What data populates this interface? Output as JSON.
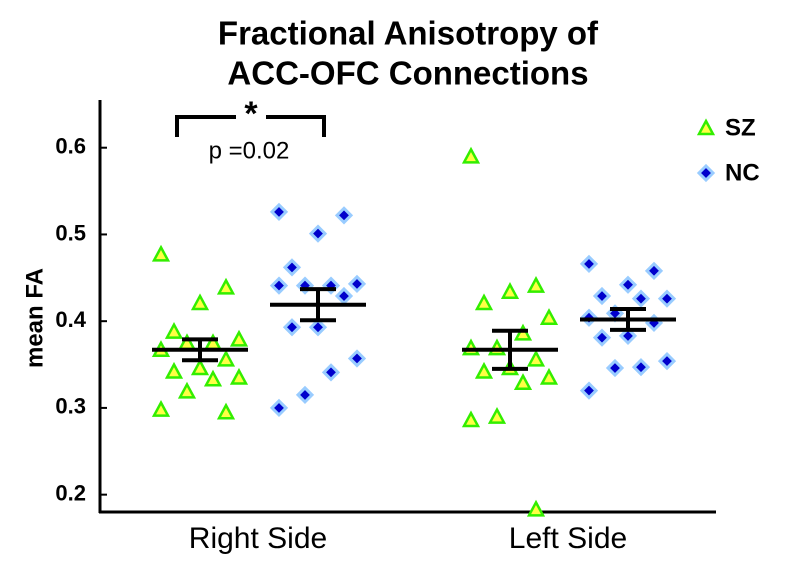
{
  "chart_data": {
    "type": "scatter",
    "title": [
      "Fractional Anisotropy of",
      "ACC-OFC Connections"
    ],
    "ylabel": "mean FA",
    "categories": [
      "Right Side",
      "Left Side"
    ],
    "ylim": [
      0.18,
      0.655
    ],
    "yticks": [
      0.2,
      0.3,
      0.4,
      0.5,
      0.6
    ],
    "legend": "upper right",
    "annotation_symbol": "*",
    "annotation_text": "p =0.02",
    "series": [
      {
        "name": "SZ",
        "color": "#33ee00",
        "fill": "#ffff44",
        "values": [
          [
            0.477,
            0.439,
            0.421,
            0.388,
            0.379,
            0.375,
            0.375,
            0.367,
            0.356,
            0.346,
            0.342,
            0.335,
            0.333,
            0.319,
            0.298,
            0.295
          ],
          [
            0.59,
            0.441,
            0.434,
            0.421,
            0.404,
            0.386,
            0.369,
            0.369,
            0.356,
            0.346,
            0.342,
            0.335,
            0.329,
            0.29,
            0.286,
            0.183
          ]
        ],
        "mean": [
          0.367,
          0.367
        ],
        "error": [
          0.012,
          0.022
        ]
      },
      {
        "name": "NC",
        "color": "#0000cc",
        "fill": "#99ccff",
        "values": [
          [
            0.526,
            0.522,
            0.501,
            0.462,
            0.443,
            0.441,
            0.441,
            0.441,
            0.429,
            0.393,
            0.393,
            0.357,
            0.341,
            0.315,
            0.3
          ],
          [
            0.466,
            0.458,
            0.442,
            0.429,
            0.426,
            0.426,
            0.409,
            0.404,
            0.398,
            0.383,
            0.381,
            0.354,
            0.347,
            0.346,
            0.32
          ]
        ],
        "mean": [
          0.419,
          0.402
        ],
        "error": [
          0.018,
          0.012
        ]
      }
    ]
  }
}
